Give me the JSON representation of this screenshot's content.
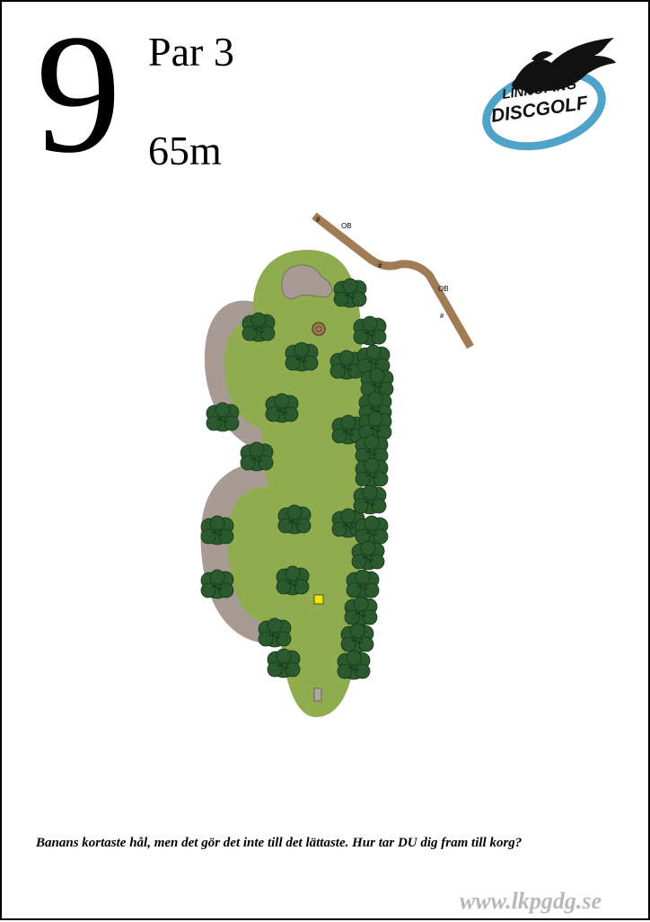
{
  "hole": {
    "number": "9",
    "par": "Par 3",
    "length": "65m"
  },
  "logo": {
    "line1": "LINKÖPING",
    "line2": "DISCGOLF",
    "ring_color": "#4fa3c9"
  },
  "map": {
    "ob_label_1": "OB",
    "ob_label_2": "OB",
    "marker_glyph": "#",
    "colors": {
      "fairway": "#8fac4f",
      "path": "#a89b93",
      "ob_line": "#a07c55",
      "tree": "#2a5a2e",
      "rock": "#a89b93",
      "tee": "#b0a8a0",
      "drop_zone": "#f4e600"
    }
  },
  "caption": "Banans kortaste hål, men det gör det inte till det lättaste. Hur tar DU dig fram till korg?",
  "website": "www.lkpgdg.se"
}
